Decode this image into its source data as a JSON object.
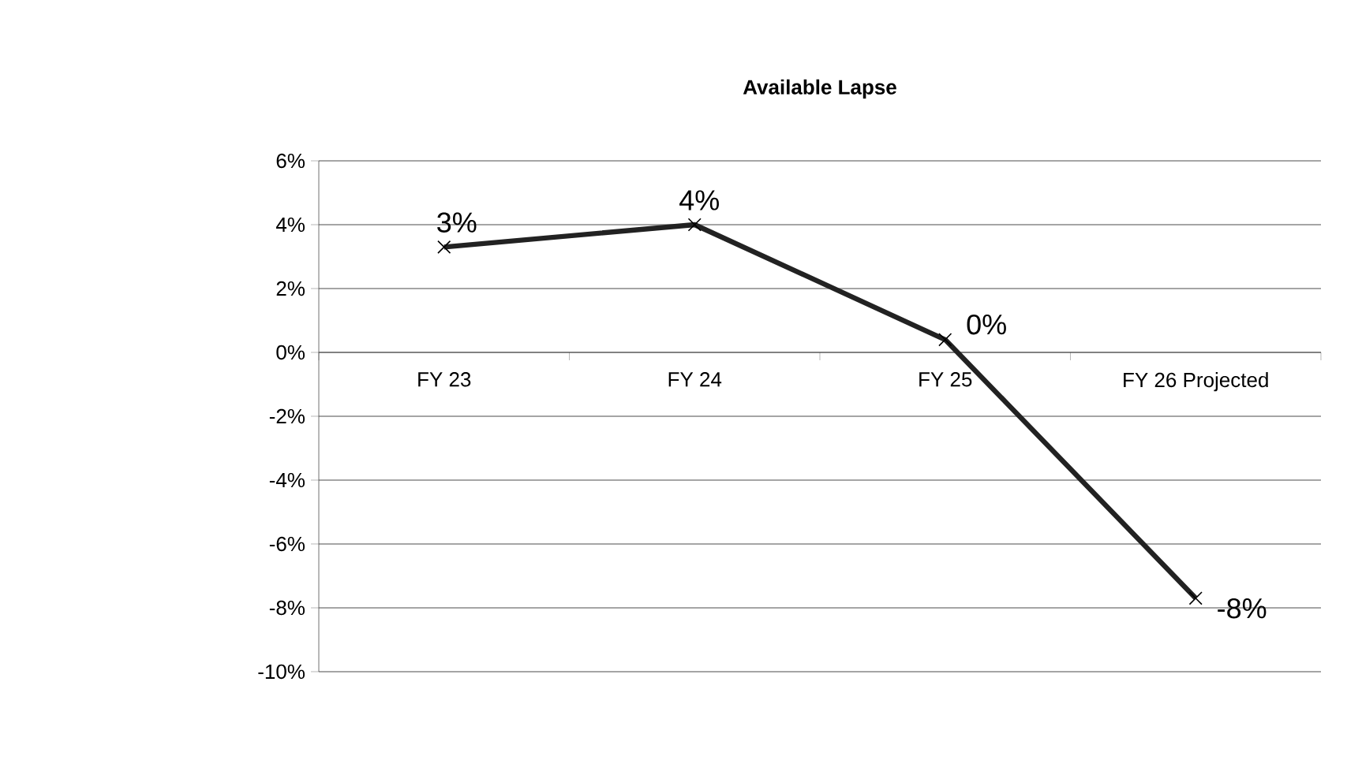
{
  "chart_data": {
    "type": "line",
    "title": "Available Lapse",
    "categories": [
      "FY 23",
      "FY 24",
      "FY 25",
      "FY 26 Projected"
    ],
    "series": [
      {
        "color": "#222222",
        "values": [
          3.3,
          4.0,
          0.4,
          -7.7
        ],
        "value_labels": [
          "3%",
          "4%",
          "0%",
          "-8%"
        ]
      }
    ],
    "ylim": [
      -10,
      6
    ],
    "yticks": [
      {
        "value": -10,
        "label": "-10%"
      },
      {
        "value": -8,
        "label": "-8%"
      },
      {
        "value": -6,
        "label": "-6%"
      },
      {
        "value": -4,
        "label": "-4%"
      },
      {
        "value": -2,
        "label": "-2%"
      },
      {
        "value": 0,
        "label": "0%"
      },
      {
        "value": 2,
        "label": "2%"
      },
      {
        "value": 4,
        "label": "4%"
      },
      {
        "value": 6,
        "label": "6%"
      }
    ],
    "grid": "y",
    "marker": "cross",
    "line_style": "solid"
  }
}
